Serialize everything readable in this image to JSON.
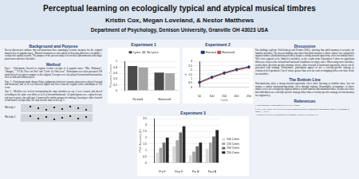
{
  "header": {
    "title": "Perceptual learning on ecologically typical and atypical musical timbres",
    "authors": "Kristin Cox, Megan Loveland, & Nestor Matthews",
    "affiliation": "Department of Psychology, Denison University, Granville OH 43023 USA"
  },
  "left": [
    {
      "heading": "Background and Purpose",
      "paragraphs": [
        "Recent discoveries indicate that non-musicians have stunningly accurate memory for the original musical key of popular tunes¹. Musical transients are also salient in detecting differences in timbre² - a subjective quality of pitch. The purpose of the present study is to test these phenomenon with single piano notes and novel melodies."
      ]
    },
    {
      "heading": "Method",
      "paragraphs": [
        "Exp.1 - Participants listened to original version excerpts of 4 popular tunes: “Mrs. Robinson”, “Imagine,” “I’ll Be There for You” and “Livin’ La Vida Loca”. Participants were then presented 100 pitch-altered excerpts to compare to the original. Excerpts were also played forward and backward as well as with and without lyrics.",
        "Exp. 2 - Participants made sharper/flatter judgments about two separate piano notes: played forward and backward, and in 50 cent intervals higher and lower than the original with a maximum of 250 cents.",
        "Exp. 3 - Melodies (see below) incorporating the same tonalities as exp. 2 were created, and altered according to the same cent shifts as well as forward/backward. All participants were exposed to pre and post sessions, but split into 2 numerically similar groups for training, listening to either forward or backward excerpts only. The task was the same as in exp. 2."
      ]
    }
  ],
  "melodies": [
    "Melody 1",
    "Melody 2"
  ],
  "right": [
    {
      "heading": "Discussion",
      "paragraphs": [
        "Our findings replicate Schellenberg and Trehub (2003), showing that pitch memory is accurate for familiar melodies. The present findings also show that pitch memory is above chance for ecologically atypical timbres (backward-played notes) despite a strong forward superiority effect for familiar tunes. This effect appears to be limited to melodies, as the results from Experiment 2 show no significant difference between the forward and backward conditions for single notes. When using novel melodies, results show direction specific training effects; either forward or backward superiority effects can be generated with training. Furthermore, participants appear to use a velocity-specific strategy as evidenced in Experiment 3 by d’ values greater than zero for each overlapping delta cent value in the two melodies."
      ]
    },
    {
      "heading": "The Bottom Line",
      "paragraphs": [
        "Non-musicians show a strong forward superiority effect when listening to familiar tunes, but can acquire a similar backward-superiority effect through training. Remarkably, performance is above chance levels for ecologically atypical timbres in both familiar and unfamiliar tunes. Results also show that individuals use a melody-specific strategy rather than a velocity-specific strategy to form memory for original key."
      ]
    }
  ],
  "references": {
    "heading": "References",
    "items": [
      "1 Schellenberg & Trehub (2003) PSYCH SCI 14:262",
      "2 Grey, J.M. (1975). The effect of the attack transient on aural recognition of instrumental timbres. Psychology of Music, 3, 16-32.",
      "3 Denison University, Department of Psychology, Granville OH 43023 USA"
    ]
  },
  "chart_data": [
    {
      "type": "bar",
      "title": "Experiment 1",
      "y_label": "Proportion Correct",
      "categories": [
        "Forward",
        "Backward"
      ],
      "series": [
        {
          "name": "Lyrics",
          "color": "#4a4a4a",
          "values": [
            0.85,
            0.62
          ]
        },
        {
          "name": "No Lyrics",
          "color": "#a6a6a6",
          "values": [
            0.8,
            0.6
          ]
        }
      ],
      "ylim": [
        0,
        1
      ],
      "yticks": [
        0,
        0.2,
        0.4,
        0.6,
        0.8,
        1
      ],
      "grid": true,
      "legend": "top"
    },
    {
      "type": "line",
      "title": "Experiment 2",
      "x_label": "Cents",
      "y_label": "d'",
      "categories": [
        "50",
        "100",
        "150",
        "200",
        "250"
      ],
      "series": [
        {
          "name": "Forward",
          "color": "#1f3a6e",
          "values": [
            0.6,
            1.2,
            1.7,
            2.1,
            2.4
          ]
        },
        {
          "name": "Backward",
          "color": "#c0504d",
          "values": [
            0.5,
            1.1,
            1.6,
            2.0,
            2.3
          ]
        }
      ],
      "ylim": [
        0,
        3
      ],
      "yticks": [
        0,
        0.5,
        1,
        1.5,
        2,
        2.5,
        3
      ],
      "grid": true,
      "legend": "top"
    },
    {
      "type": "bar",
      "title": "Experiment 3",
      "y_label": "Pitch Accuracy (d')",
      "categories": [
        "Pre F",
        "Post F",
        "Pre B",
        "Post B"
      ],
      "series": [
        {
          "name": "100 Cents",
          "color": "#d9d9d9",
          "values": [
            0.8,
            1.3,
            0.6,
            1.1
          ]
        },
        {
          "name": "150 Cents",
          "color": "#a6a6a6",
          "values": [
            1.2,
            1.8,
            0.9,
            1.6
          ]
        },
        {
          "name": "200 Cents",
          "color": "#6e6e6e",
          "values": [
            1.6,
            2.4,
            1.3,
            2.1
          ]
        },
        {
          "name": "250 Cents",
          "color": "#262626",
          "values": [
            2.0,
            2.9,
            1.6,
            2.6
          ]
        }
      ],
      "ylim": [
        0,
        3.5
      ],
      "yticks": [
        0,
        0.5,
        1,
        1.5,
        2,
        2.5,
        3,
        3.5
      ],
      "grid": true,
      "legend": "right"
    }
  ]
}
